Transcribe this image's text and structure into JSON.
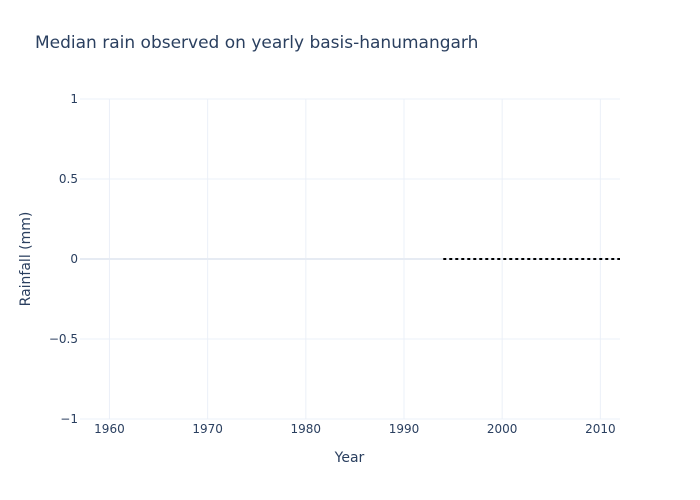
{
  "chart_data": {
    "type": "line",
    "title": "Median rain observed on yearly basis-hanumangarh",
    "xlabel": "Year",
    "ylabel": "Rainfall (mm)",
    "xlim": [
      1957,
      2012
    ],
    "ylim": [
      -1,
      1
    ],
    "x_ticks": [
      1960,
      1970,
      1980,
      1990,
      2000,
      2010
    ],
    "y_ticks": [
      1,
      0.5,
      0,
      -0.5,
      -1
    ],
    "y_tick_labels": [
      "1",
      "0.5",
      "0",
      "−0.5",
      "−1"
    ],
    "grid": true,
    "legend": "none",
    "series": [
      {
        "x": [
          1994,
          2012
        ],
        "y": [
          0,
          0
        ],
        "color": "#000000",
        "dash": "dot"
      }
    ]
  }
}
